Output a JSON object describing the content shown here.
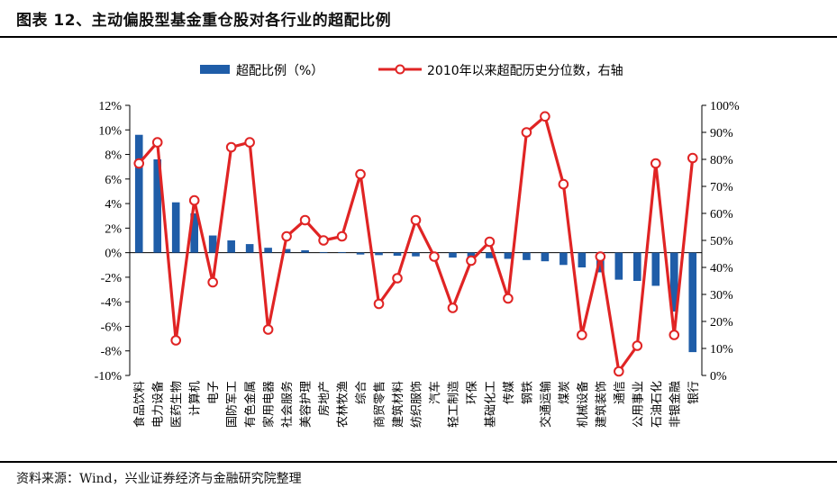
{
  "header": {
    "title": "图表 12、主动偏股型基金重仓股对各行业的超配比例"
  },
  "footer": {
    "source": "资料来源：Wind，兴业证券经济与金融研究院整理"
  },
  "colors": {
    "bar": "#1f5da8",
    "line": "#e02424",
    "marker_fill": "#ffffff",
    "axis": "#000000"
  },
  "chart_data": {
    "type": "bar+line",
    "title": "主动偏股型基金重仓股对各行业的超配比例",
    "categories": [
      "食品饮料",
      "电力设备",
      "医药生物",
      "计算机",
      "电子",
      "国防军工",
      "有色金属",
      "家用电器",
      "社会服务",
      "美容护理",
      "房地产",
      "农林牧渔",
      "综合",
      "商贸零售",
      "建筑材料",
      "纺织服饰",
      "汽车",
      "轻工制造",
      "环保",
      "基础化工",
      "传媒",
      "钢铁",
      "交通运输",
      "煤炭",
      "机械设备",
      "建筑装饰",
      "通信",
      "公用事业",
      "石油石化",
      "非银金融",
      "银行"
    ],
    "series": [
      {
        "name": "超配比例（%）",
        "type": "bar",
        "axis": "left",
        "values": [
          9.6,
          7.6,
          4.1,
          3.2,
          1.4,
          1.0,
          0.7,
          0.4,
          0.3,
          0.2,
          0.05,
          0.05,
          -0.15,
          -0.2,
          -0.25,
          -0.3,
          -0.35,
          -0.4,
          -0.4,
          -0.45,
          -0.5,
          -0.6,
          -0.7,
          -1.0,
          -1.2,
          -1.6,
          -2.2,
          -2.3,
          -2.7,
          -4.8,
          -8.1
        ]
      },
      {
        "name": "2010年以来超配历史分位数，右轴",
        "type": "line",
        "axis": "right",
        "values": [
          78.5,
          86.3,
          13.0,
          64.8,
          34.5,
          84.5,
          86.3,
          17.0,
          51.5,
          57.5,
          50.0,
          51.5,
          74.5,
          26.5,
          36.0,
          57.5,
          44.0,
          25.0,
          42.5,
          49.5,
          28.5,
          90.0,
          95.9,
          70.8,
          15.0,
          44.0,
          1.5,
          11.0,
          78.5,
          15.0,
          80.5
        ]
      }
    ],
    "yleft": {
      "min": -10,
      "max": 12,
      "step": 2,
      "ticks": [
        "-10%",
        "-8%",
        "-6%",
        "-4%",
        "-2%",
        "0%",
        "2%",
        "4%",
        "6%",
        "8%",
        "10%",
        "12%"
      ]
    },
    "yright": {
      "min": 0,
      "max": 100,
      "step": 10,
      "ticks": [
        "0%",
        "10%",
        "20%",
        "30%",
        "40%",
        "50%",
        "60%",
        "70%",
        "80%",
        "90%",
        "100%"
      ]
    },
    "legend": {
      "position": "top",
      "bar_label": "超配比例（%）",
      "line_label": "2010年以来超配历史分位数，右轴"
    }
  }
}
